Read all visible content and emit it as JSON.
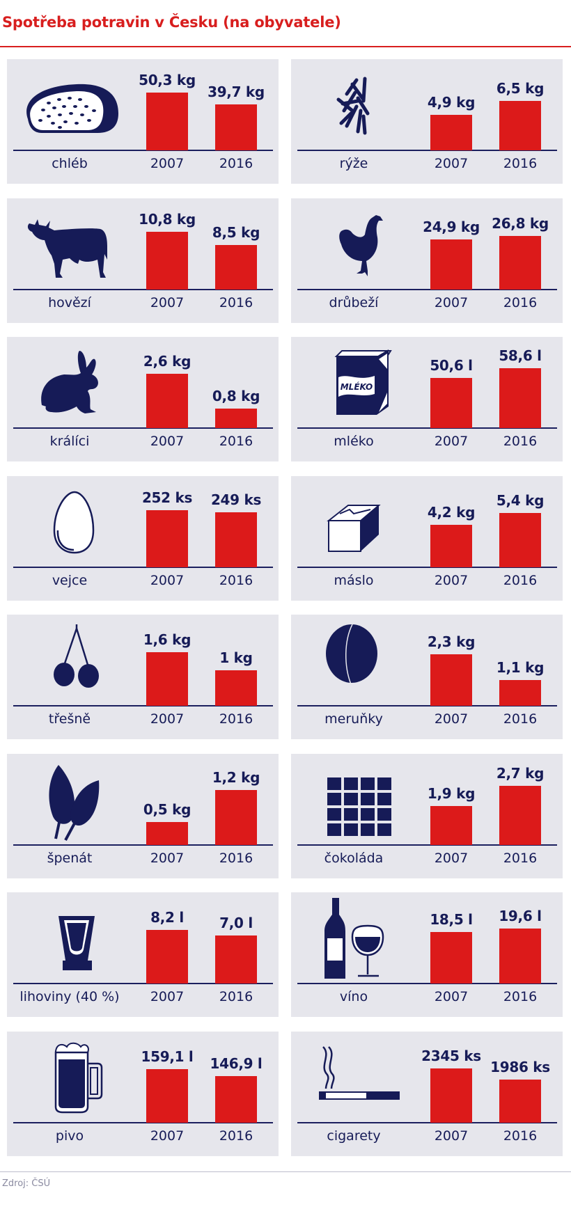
{
  "header": {
    "title": "Spotřeba potravin v Česku (na obyvatele)"
  },
  "footer": {
    "source": "Zdroj: ČSÚ"
  },
  "colors": {
    "title_red": "#d81e1e",
    "bar_red": "#dc1a1a",
    "navy": "#161b57",
    "panel_bg": "#e6e6ec"
  },
  "panels": [
    {
      "label": "chléb",
      "icon": "bread-icon",
      "years": [
        "2007",
        "2016"
      ],
      "values": [
        "50,3 kg",
        "39,7 kg"
      ],
      "heights": [
        83,
        66
      ]
    },
    {
      "label": "rýže",
      "icon": "rice-icon",
      "years": [
        "2007",
        "2016"
      ],
      "values": [
        "4,9 kg",
        "6,5 kg"
      ],
      "heights": [
        51,
        71
      ]
    },
    {
      "label": "hovězí",
      "icon": "cow-icon",
      "years": [
        "2007",
        "2016"
      ],
      "values": [
        "10,8 kg",
        "8,5 kg"
      ],
      "heights": [
        83,
        64
      ]
    },
    {
      "label": "drůbeží",
      "icon": "chicken-icon",
      "years": [
        "2007",
        "2016"
      ],
      "values": [
        "24,9 kg",
        "26,8 kg"
      ],
      "heights": [
        72,
        77
      ]
    },
    {
      "label": "králíci",
      "icon": "rabbit-icon",
      "years": [
        "2007",
        "2016"
      ],
      "values": [
        "2,6 kg",
        "0,8 kg"
      ],
      "heights": [
        78,
        28
      ]
    },
    {
      "label": "mléko",
      "icon": "milk-carton-icon",
      "icon_text": "MLÉKO",
      "years": [
        "2007",
        "2016"
      ],
      "values": [
        "50,6 l",
        "58,6 l"
      ],
      "heights": [
        72,
        86
      ]
    },
    {
      "label": "vejce",
      "icon": "egg-icon",
      "years": [
        "2007",
        "2016"
      ],
      "values": [
        "252 ks",
        "249 ks"
      ],
      "heights": [
        82,
        79
      ]
    },
    {
      "label": "máslo",
      "icon": "butter-icon",
      "years": [
        "2007",
        "2016"
      ],
      "values": [
        "4,2 kg",
        "5,4 kg"
      ],
      "heights": [
        61,
        78
      ]
    },
    {
      "label": "třešně",
      "icon": "cherries-icon",
      "years": [
        "2007",
        "2016"
      ],
      "values": [
        "1,6 kg",
        "1 kg"
      ],
      "heights": [
        77,
        51
      ]
    },
    {
      "label": "meruňky",
      "icon": "apricot-icon",
      "years": [
        "2007",
        "2016"
      ],
      "values": [
        "2,3 kg",
        "1,1 kg"
      ],
      "heights": [
        74,
        37
      ]
    },
    {
      "label": "špenát",
      "icon": "spinach-leaves-icon",
      "years": [
        "2007",
        "2016"
      ],
      "values": [
        "0,5 kg",
        "1,2 kg"
      ],
      "heights": [
        33,
        79
      ]
    },
    {
      "label": "čokoláda",
      "icon": "chocolate-bar-icon",
      "years": [
        "2007",
        "2016"
      ],
      "values": [
        "1,9 kg",
        "2,7 kg"
      ],
      "heights": [
        56,
        85
      ]
    },
    {
      "label": "lihoviny (40 %)",
      "icon": "shot-glass-icon",
      "years": [
        "2007",
        "2016"
      ],
      "values": [
        "8,2 l",
        "7,0 l"
      ],
      "heights": [
        77,
        69
      ]
    },
    {
      "label": "víno",
      "icon": "wine-bottle-glass-icon",
      "years": [
        "2007",
        "2016"
      ],
      "values": [
        "18,5 l",
        "19,6 l"
      ],
      "heights": [
        74,
        79
      ]
    },
    {
      "label": "pivo",
      "icon": "beer-mug-icon",
      "years": [
        "2007",
        "2016"
      ],
      "values": [
        "159,1 l",
        "146,9 l"
      ],
      "heights": [
        77,
        67
      ]
    },
    {
      "label": "cigarety",
      "icon": "cigarette-icon",
      "years": [
        "2007",
        "2016"
      ],
      "values": [
        "2345 ks",
        "1986 ks"
      ],
      "heights": [
        78,
        62
      ]
    }
  ],
  "chart_data": {
    "type": "bar",
    "title": "Spotřeba potravin v Česku (na obyvatele)",
    "source": "Zdroj: ČSÚ",
    "categories": [
      "2007",
      "2016"
    ],
    "xlabel": "",
    "ylabel": "",
    "grid": false,
    "legend": "none",
    "small_multiples": [
      {
        "name": "chléb",
        "unit": "kg",
        "values": [
          50.3,
          39.7
        ]
      },
      {
        "name": "rýže",
        "unit": "kg",
        "values": [
          4.9,
          6.5
        ]
      },
      {
        "name": "hovězí",
        "unit": "kg",
        "values": [
          10.8,
          8.5
        ]
      },
      {
        "name": "drůbeží",
        "unit": "kg",
        "values": [
          24.9,
          26.8
        ]
      },
      {
        "name": "králíci",
        "unit": "kg",
        "values": [
          2.6,
          0.8
        ]
      },
      {
        "name": "mléko",
        "unit": "l",
        "values": [
          50.6,
          58.6
        ]
      },
      {
        "name": "vejce",
        "unit": "ks",
        "values": [
          252,
          249
        ]
      },
      {
        "name": "máslo",
        "unit": "kg",
        "values": [
          4.2,
          5.4
        ]
      },
      {
        "name": "třešně",
        "unit": "kg",
        "values": [
          1.6,
          1.0
        ]
      },
      {
        "name": "meruňky",
        "unit": "kg",
        "values": [
          2.3,
          1.1
        ]
      },
      {
        "name": "špenát",
        "unit": "kg",
        "values": [
          0.5,
          1.2
        ]
      },
      {
        "name": "čokoláda",
        "unit": "kg",
        "values": [
          1.9,
          2.7
        ]
      },
      {
        "name": "lihoviny (40 %)",
        "unit": "l",
        "values": [
          8.2,
          7.0
        ]
      },
      {
        "name": "víno",
        "unit": "l",
        "values": [
          18.5,
          19.6
        ]
      },
      {
        "name": "pivo",
        "unit": "l",
        "values": [
          159.1,
          146.9
        ]
      },
      {
        "name": "cigarety",
        "unit": "ks",
        "values": [
          2345,
          1986
        ]
      }
    ]
  }
}
